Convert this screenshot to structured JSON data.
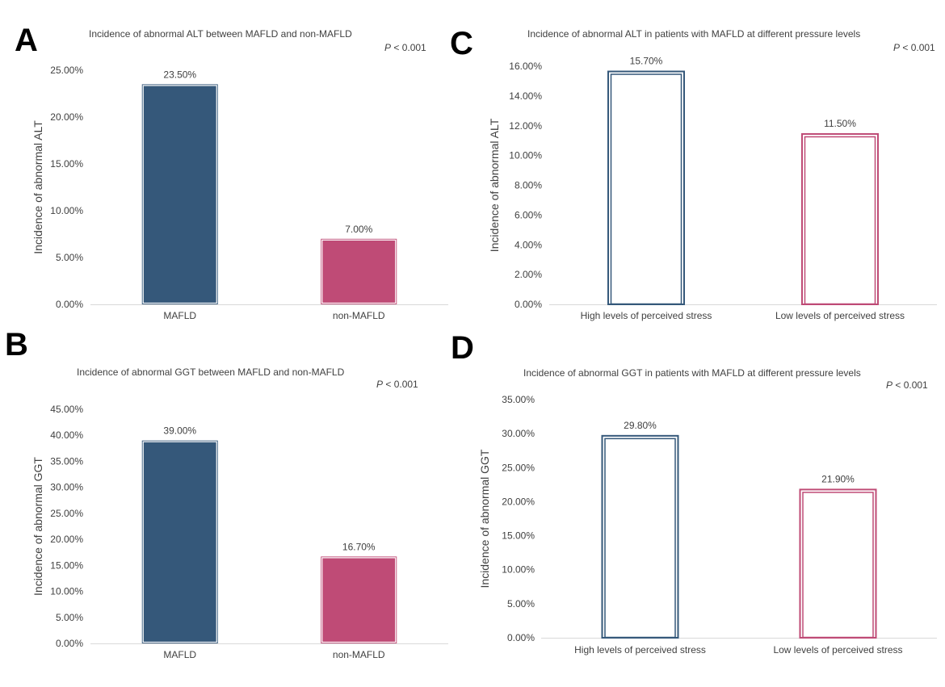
{
  "colors": {
    "mafld": "#35587a",
    "nonmafld": "#bf4b76",
    "axis": "#d9d9d9",
    "text": "#404040"
  },
  "chart_data": [
    {
      "id": "A",
      "type": "bar",
      "panel_letter": "A",
      "title": "Incidence of abnormal ALT between MAFLD and non-MAFLD",
      "p_label": "P",
      "p_value": "< 0.001",
      "ylabel": "Incidence of abnormal ALT",
      "xlabel": "",
      "ylim": [
        0,
        25
      ],
      "yticks": [
        0,
        5,
        10,
        15,
        20,
        25
      ],
      "ytick_labels": [
        "0.00%",
        "5.00%",
        "10.00%",
        "15.00%",
        "20.00%",
        "25.00%"
      ],
      "categories": [
        "MAFLD",
        "non-MAFLD"
      ],
      "values": [
        23.5,
        7.0
      ],
      "value_labels": [
        "23.50%",
        "7.00%"
      ],
      "style": "filled",
      "bar_colors": [
        "#35587a",
        "#bf4b76"
      ]
    },
    {
      "id": "B",
      "type": "bar",
      "panel_letter": "B",
      "title": "Incidence of abnormal GGT between MAFLD and non-MAFLD",
      "p_label": "P",
      "p_value": "< 0.001",
      "ylabel": "Incidence of abnormal GGT",
      "xlabel": "",
      "ylim": [
        0,
        45
      ],
      "yticks": [
        0,
        5,
        10,
        15,
        20,
        25,
        30,
        35,
        40,
        45
      ],
      "ytick_labels": [
        "0.00%",
        "5.00%",
        "10.00%",
        "15.00%",
        "20.00%",
        "25.00%",
        "30.00%",
        "35.00%",
        "40.00%",
        "45.00%"
      ],
      "categories": [
        "MAFLD",
        "non-MAFLD"
      ],
      "values": [
        39.0,
        16.7
      ],
      "value_labels": [
        "39.00%",
        "16.70%"
      ],
      "style": "filled",
      "bar_colors": [
        "#35587a",
        "#bf4b76"
      ]
    },
    {
      "id": "C",
      "type": "bar",
      "panel_letter": "C",
      "title": "Incidence of abnormal ALT in patients with MAFLD at different pressure levels",
      "p_label": "P",
      "p_value": "< 0.001",
      "ylabel": "Incidence of abnormal ALT",
      "xlabel": "",
      "ylim": [
        0,
        16
      ],
      "yticks": [
        0,
        2,
        4,
        6,
        8,
        10,
        12,
        14,
        16
      ],
      "ytick_labels": [
        "0.00%",
        "2.00%",
        "4.00%",
        "6.00%",
        "8.00%",
        "10.00%",
        "12.00%",
        "14.00%",
        "16.00%"
      ],
      "categories": [
        "High levels of perceived stress",
        "Low levels of perceived stress"
      ],
      "values": [
        15.7,
        11.5
      ],
      "value_labels": [
        "15.70%",
        "11.50%"
      ],
      "style": "outline",
      "bar_colors": [
        "#35587a",
        "#bf4b76"
      ]
    },
    {
      "id": "D",
      "type": "bar",
      "panel_letter": "D",
      "title": "Incidence of abnormal GGT in patients with MAFLD at different pressure levels",
      "p_label": "P",
      "p_value": "< 0.001",
      "ylabel": "Incidence of abnormal GGT",
      "xlabel": "",
      "ylim": [
        0,
        35
      ],
      "yticks": [
        0,
        5,
        10,
        15,
        20,
        25,
        30,
        35
      ],
      "ytick_labels": [
        "0.00%",
        "5.00%",
        "10.00%",
        "15.00%",
        "20.00%",
        "25.00%",
        "30.00%",
        "35.00%"
      ],
      "categories": [
        "High levels of perceived stress",
        "Low levels of perceived stress"
      ],
      "values": [
        29.8,
        21.9
      ],
      "value_labels": [
        "29.80%",
        "21.90%"
      ],
      "style": "outline",
      "bar_colors": [
        "#35587a",
        "#bf4b76"
      ]
    }
  ]
}
